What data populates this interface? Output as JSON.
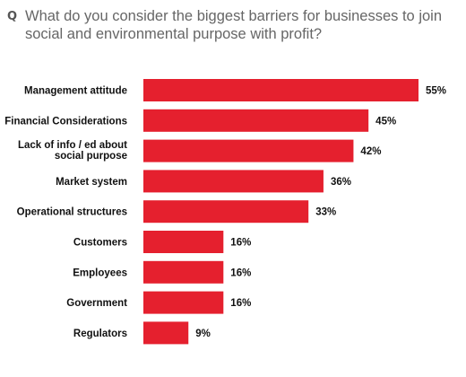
{
  "chart_data": {
    "type": "bar",
    "orientation": "horizontal",
    "title_prefix": "Q",
    "title": "What do you consider the biggest barriers for businesses to join social and environmental purpose with profit?",
    "categories": [
      "Management attitude",
      "Financial Considerations",
      "Lack of info / ed about social purpose",
      "Market system",
      "Operational structures",
      "Customers",
      "Employees",
      "Government",
      "Regulators"
    ],
    "values": [
      55,
      45,
      42,
      36,
      33,
      16,
      16,
      16,
      9
    ],
    "value_labels": [
      "55%",
      "45%",
      "42%",
      "36%",
      "33%",
      "16%",
      "16%",
      "16%",
      "9%"
    ],
    "xlabel": "",
    "ylabel": "",
    "xlim": [
      0,
      55
    ],
    "grid": false,
    "legend": "none",
    "bar_color": "#e5202e"
  }
}
